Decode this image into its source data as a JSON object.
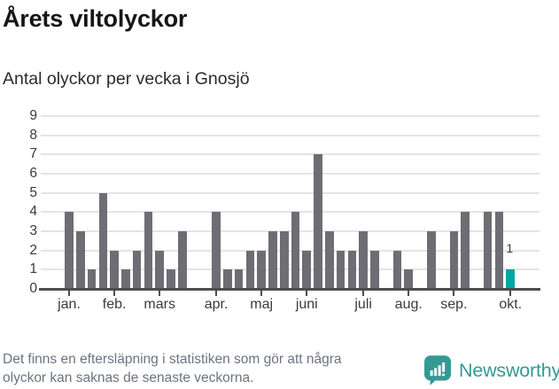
{
  "title": "Årets viltolyckor",
  "subtitle": "Antal olyckor per vecka i Gnosjö",
  "footer": {
    "line1": "Det finns en eftersläpning i statistiken som gör att några",
    "line2": "olyckor kan saknas de senaste veckorna."
  },
  "logo": {
    "text": "Newsworthy",
    "icon": "newsworthy-speech-bubble-chart-icon"
  },
  "colors": {
    "bar": "#6e6d73",
    "highlight": "#00a79e",
    "gridline": "#e4e4e4",
    "axis": "#4d4d4d",
    "tick_text": "#3a3a3a",
    "footer_text": "#6b7480",
    "logo_teal": "#339a93",
    "title_text": "#161616"
  },
  "chart_data": {
    "type": "bar",
    "title": "Årets viltolyckor",
    "subtitle": "Antal olyckor per vecka i Gnosjö",
    "x_unit": "vecka (week of year)",
    "ylabel": "Antal olyckor",
    "ylim": [
      0,
      9
    ],
    "yticks": [
      0,
      1,
      2,
      3,
      4,
      5,
      6,
      7,
      8,
      9
    ],
    "grid": "horizontal",
    "legend": "none",
    "weeks": 40,
    "values": [
      4,
      3,
      1,
      5,
      2,
      1,
      2,
      4,
      2,
      1,
      3,
      0,
      0,
      4,
      1,
      1,
      2,
      2,
      3,
      3,
      4,
      2,
      7,
      3,
      2,
      2,
      3,
      2,
      0,
      2,
      1,
      0,
      3,
      0,
      3,
      4,
      0,
      4,
      4,
      1
    ],
    "highlight": {
      "week": 40,
      "value": 1,
      "label": "1"
    },
    "month_ticks": [
      {
        "label": "jan.",
        "week": 1
      },
      {
        "label": "feb.",
        "week": 5
      },
      {
        "label": "mars",
        "week": 9
      },
      {
        "label": "apr.",
        "week": 14
      },
      {
        "label": "maj",
        "week": 18
      },
      {
        "label": "juni",
        "week": 22
      },
      {
        "label": "juli",
        "week": 27
      },
      {
        "label": "aug.",
        "week": 31
      },
      {
        "label": "sep.",
        "week": 35
      },
      {
        "label": "okt.",
        "week": 40
      }
    ]
  }
}
